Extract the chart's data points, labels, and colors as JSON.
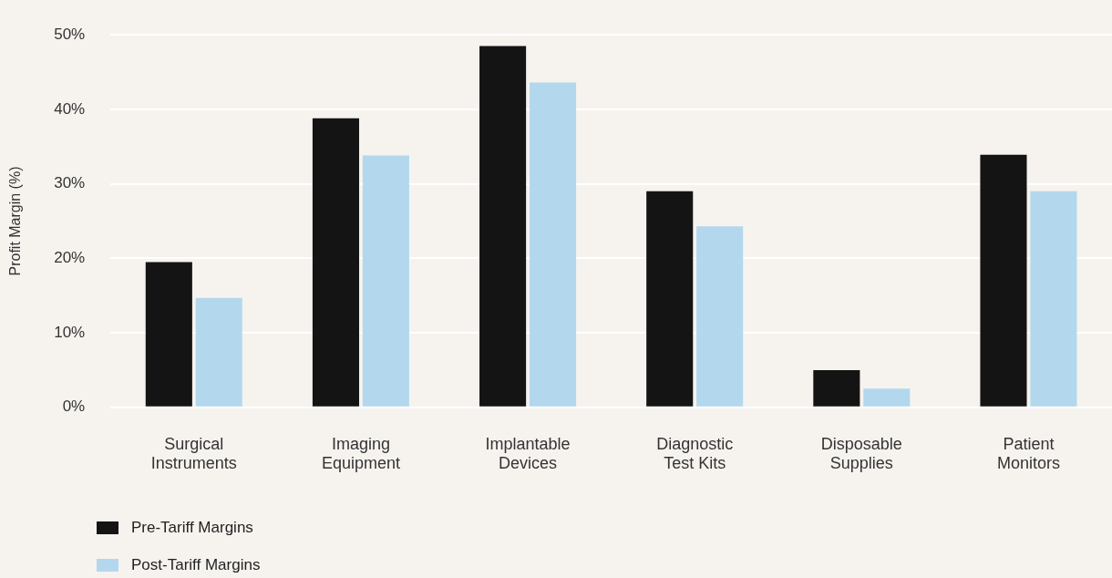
{
  "chart_data": {
    "type": "bar",
    "ylabel": "Profit Margin (%)",
    "categories": [
      "Surgical Instruments",
      "Imaging Equipment",
      "Implantable Devices",
      "Diagnostic Test Kits",
      "Disposable Supplies",
      "Patient Monitors"
    ],
    "series": [
      {
        "name": "Pre-Tariff Margins",
        "color": "#141414",
        "values": [
          19.5,
          38.8,
          48.5,
          29,
          5,
          33.9
        ]
      },
      {
        "name": "Post-Tariff Margins",
        "color": "#b3d8ee",
        "values": [
          14.7,
          33.8,
          43.6,
          24.3,
          2.5,
          29
        ]
      }
    ],
    "ylim": [
      0,
      50
    ],
    "yticks": [
      {
        "value": 0,
        "label": "0%"
      },
      {
        "value": 10,
        "label": "10%"
      },
      {
        "value": 20,
        "label": "20%"
      },
      {
        "value": 30,
        "label": "30%"
      },
      {
        "value": 40,
        "label": "40%"
      },
      {
        "value": 50,
        "label": "50%"
      }
    ],
    "grid": "y",
    "legend": "bottom left"
  }
}
